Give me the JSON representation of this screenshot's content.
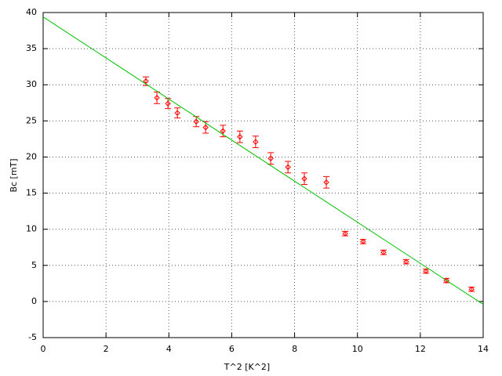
{
  "chart_data": {
    "type": "scatter",
    "xlabel": "T^2  [K^2]",
    "ylabel": "Bc  [mT]",
    "xlim": [
      0,
      14
    ],
    "ylim": [
      -5,
      40
    ],
    "xticks": [
      0,
      2,
      4,
      6,
      8,
      10,
      12,
      14
    ],
    "yticks": [
      -5,
      0,
      5,
      10,
      15,
      20,
      25,
      30,
      35,
      40
    ],
    "grid": true,
    "series": [
      {
        "style": "errorpoints",
        "color": "#ff0000",
        "x": [
          3.27,
          3.62,
          3.97,
          4.27,
          4.87,
          5.17,
          5.72,
          6.26,
          6.76,
          7.24,
          7.79,
          8.31,
          9.01,
          9.61,
          10.18,
          10.83,
          11.55,
          12.18,
          12.83,
          13.63
        ],
        "values": [
          30.5,
          28.2,
          27.4,
          26.1,
          24.9,
          24.1,
          23.6,
          22.8,
          22.1,
          19.8,
          18.6,
          17.0,
          16.5,
          9.4,
          8.3,
          6.8,
          5.5,
          4.2,
          2.9,
          1.7
        ],
        "errors": [
          0.6,
          0.8,
          0.7,
          0.7,
          0.7,
          0.8,
          0.8,
          0.8,
          0.8,
          0.8,
          0.8,
          0.8,
          0.8,
          0.3,
          0.3,
          0.3,
          0.3,
          0.3,
          0.3,
          0.3
        ]
      },
      {
        "style": "line",
        "color": "#00c000",
        "x": [
          0,
          14
        ],
        "values": [
          39.4,
          -0.4
        ]
      }
    ]
  }
}
